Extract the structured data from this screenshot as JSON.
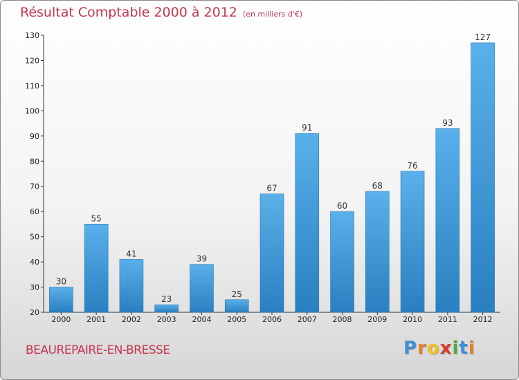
{
  "title": "Résultat Comptable 2000 à 2012",
  "unit": "(en milliers d'€)",
  "town": "BEAUREPAIRE-EN-BRESSE",
  "logo": {
    "letters": [
      "P",
      "r",
      "o",
      "x",
      "i",
      "t",
      "i"
    ],
    "colors": [
      "#3f8fd6",
      "#e4802a",
      "#f2c21c",
      "#d83a2c",
      "#52a83b",
      "#3f8fd6",
      "#e4802a"
    ]
  },
  "colors": {
    "bar_top": "#5ab0ea",
    "bar_bottom": "#2a7fc0",
    "title": "#c8344f"
  },
  "chart_data": {
    "type": "bar",
    "title": "Résultat Comptable 2000 à 2012",
    "ylabel": "en milliers d'€",
    "xlabel": "",
    "categories": [
      "2000",
      "2001",
      "2002",
      "2003",
      "2004",
      "2005",
      "2006",
      "2007",
      "2008",
      "2009",
      "2010",
      "2011",
      "2012"
    ],
    "values": [
      30,
      55,
      41,
      23,
      39,
      25,
      67,
      91,
      60,
      68,
      76,
      93,
      127
    ],
    "value_labels": [
      "30",
      "55",
      "41",
      "23",
      "39",
      "25",
      "67",
      "91",
      "60",
      "68",
      "76",
      "93",
      "127"
    ],
    "ylim": [
      20,
      130
    ],
    "yticks": [
      20,
      30,
      40,
      50,
      60,
      70,
      80,
      90,
      100,
      110,
      120,
      130
    ],
    "ytick_labels": [
      "20",
      "30",
      "40",
      "50",
      "60",
      "70",
      "80",
      "90",
      "100",
      "110",
      "120",
      "130"
    ],
    "grid": false
  }
}
